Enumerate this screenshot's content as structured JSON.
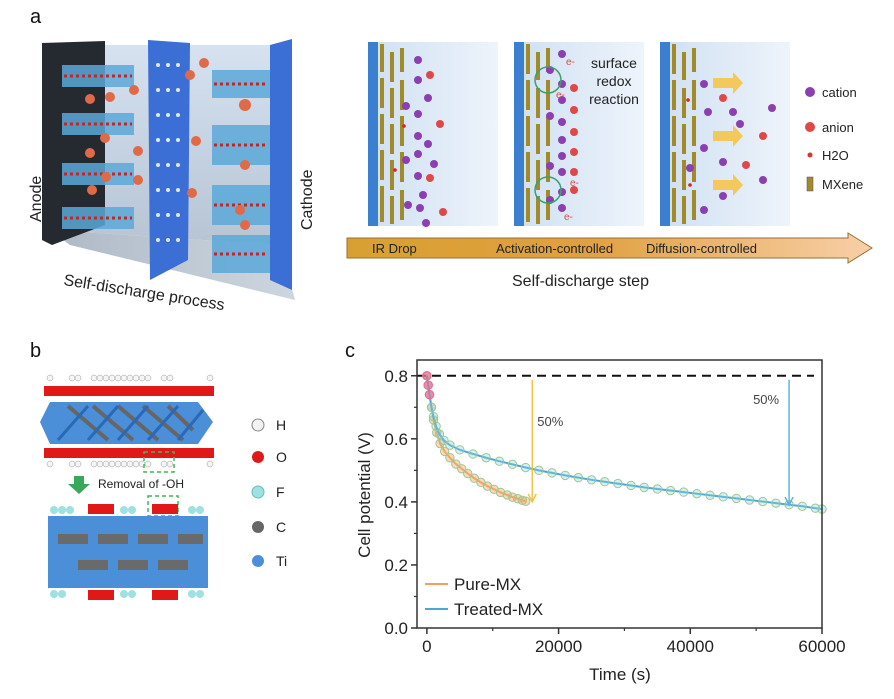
{
  "panels": {
    "a": {
      "letter": "a",
      "schematic": {
        "anode_label": "Anode",
        "cathode_label": "Cathode",
        "process_label": "Self-discharge process"
      },
      "steps": [
        {
          "label": "IR Drop"
        },
        {
          "label": "Activation-controlled",
          "annotation": [
            "surface",
            "redox",
            "reaction"
          ],
          "electron_label": "e-"
        },
        {
          "label": "Diffusion-controlled"
        }
      ],
      "step_axis_label": "Self-discharge step",
      "legend": [
        {
          "label": "cation",
          "color": "#8b3fb0"
        },
        {
          "label": "anion",
          "color": "#e04848"
        },
        {
          "label": "H2O",
          "color": "#e03030"
        },
        {
          "label": "MXene",
          "color": "#a08a2a"
        }
      ],
      "colors": {
        "arrow_start": "#d8a030",
        "arrow_end": "#f8cfa8",
        "electrode": "#3a7fd0",
        "cation": "#8b3fb0",
        "anion": "#e04848",
        "mxene": "#a08a2a"
      }
    },
    "b": {
      "letter": "b",
      "transition_label": "Removal of -OH",
      "legend": [
        {
          "label": "H",
          "color": "#f2f2f2"
        },
        {
          "label": "O",
          "color": "#e01818"
        },
        {
          "label": "F",
          "color": "#9fe0e0"
        },
        {
          "label": "C",
          "color": "#666666"
        },
        {
          "label": "Ti",
          "color": "#4a8fd8"
        }
      ]
    },
    "c": {
      "letter": "c"
    }
  },
  "chart_data": {
    "type": "scatter",
    "title": "",
    "xlabel": "Time (s)",
    "ylabel": "Cell potential (V)",
    "xlim": [
      -1500,
      60000
    ],
    "ylim": [
      0.0,
      0.85
    ],
    "xticks": [
      0,
      20000,
      40000,
      60000
    ],
    "xtick_labels": [
      "0",
      "20000",
      "40000",
      "60000"
    ],
    "yticks": [
      0.0,
      0.2,
      0.4,
      0.6,
      0.8
    ],
    "ytick_labels": [
      "0.0",
      "0.2",
      "0.4",
      "0.6",
      "0.8"
    ],
    "reference_line": {
      "y": 0.8,
      "style": "dashed",
      "color": "#111111"
    },
    "legend_position": "lower-left",
    "series": [
      {
        "name": "Pure-MX",
        "color": "#f0a060",
        "x": [
          0,
          200,
          400,
          700,
          1000,
          1500,
          2000,
          2700,
          3500,
          4400,
          5300,
          6200,
          7200,
          8200,
          9200,
          10200,
          11200,
          12200,
          13000,
          13800,
          14500,
          15000
        ],
        "y": [
          0.8,
          0.77,
          0.74,
          0.7,
          0.66,
          0.62,
          0.585,
          0.56,
          0.54,
          0.52,
          0.505,
          0.49,
          0.475,
          0.462,
          0.45,
          0.44,
          0.43,
          0.422,
          0.415,
          0.41,
          0.405,
          0.402
        ]
      },
      {
        "name": "Treated-MX",
        "color": "#4aa8d8",
        "x": [
          0,
          200,
          400,
          700,
          1000,
          1400,
          1900,
          2600,
          3500,
          5000,
          7000,
          9000,
          11000,
          13000,
          15000,
          17000,
          19000,
          21000,
          23000,
          25000,
          27000,
          29000,
          31000,
          33000,
          35000,
          37000,
          39000,
          41000,
          43000,
          45000,
          47000,
          49000,
          51000,
          53000,
          55000,
          57000,
          59000,
          60000
        ],
        "y": [
          0.8,
          0.77,
          0.74,
          0.7,
          0.67,
          0.64,
          0.615,
          0.595,
          0.58,
          0.565,
          0.552,
          0.54,
          0.529,
          0.519,
          0.509,
          0.5,
          0.492,
          0.484,
          0.477,
          0.47,
          0.464,
          0.458,
          0.452,
          0.446,
          0.441,
          0.436,
          0.431,
          0.426,
          0.421,
          0.416,
          0.411,
          0.406,
          0.401,
          0.396,
          0.391,
          0.386,
          0.38,
          0.377
        ]
      }
    ],
    "annotations": [
      {
        "text": "50%",
        "arrow_x": 16000,
        "from_y": 0.8,
        "to_y": 0.4,
        "color": "#f2c040"
      },
      {
        "text": "50%",
        "arrow_x": 55000,
        "from_y": 0.8,
        "to_y": 0.39,
        "color": "#5ab0dc"
      }
    ]
  }
}
